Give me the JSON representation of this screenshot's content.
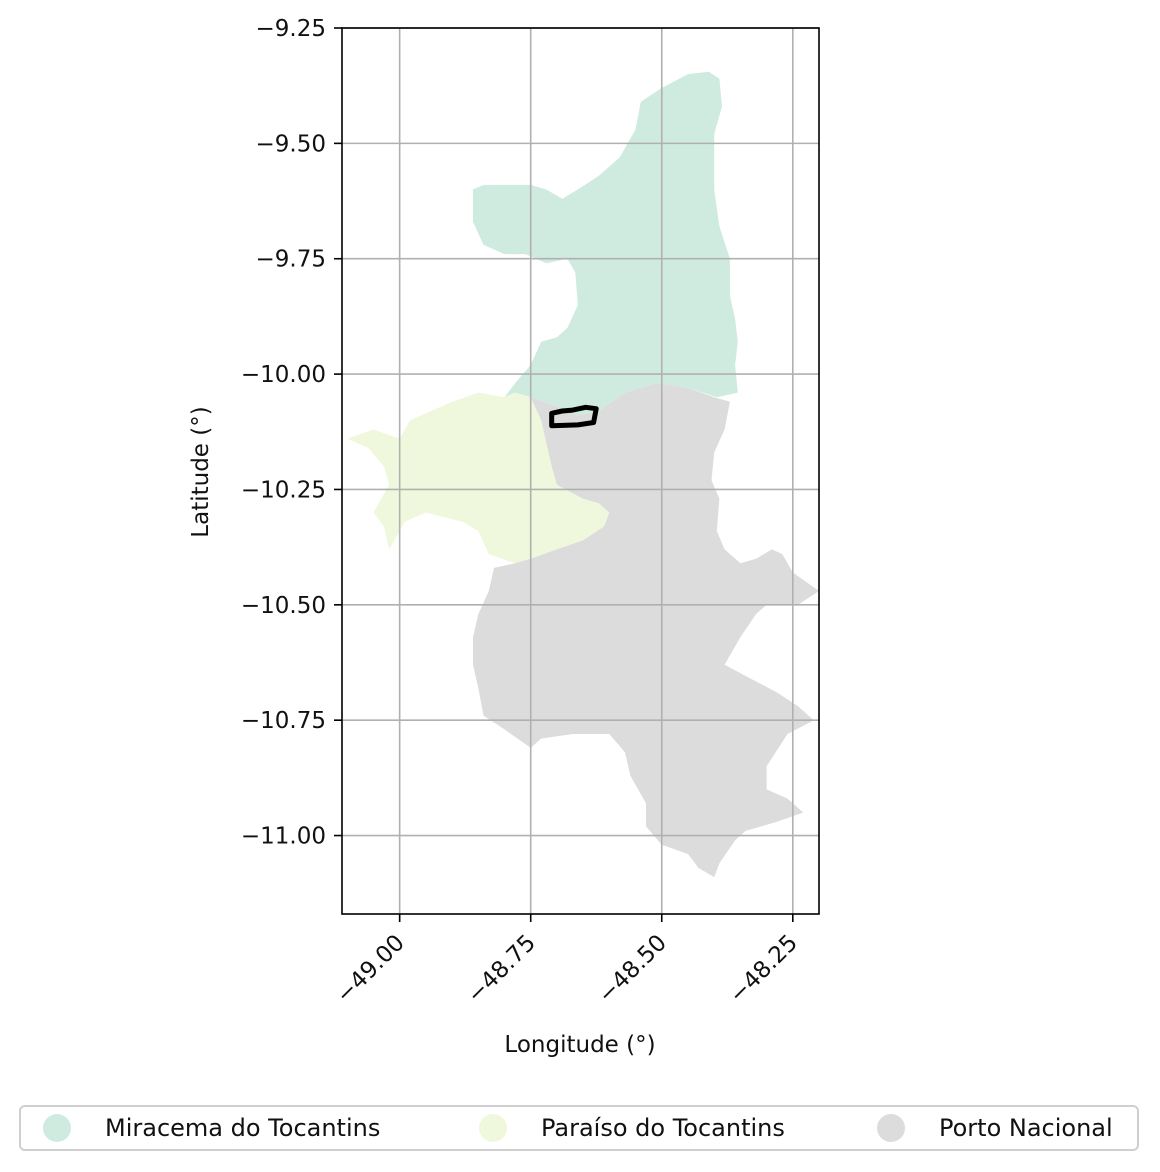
{
  "axes": {
    "xlabel": "Longitude (°)",
    "ylabel": "Latitude (°)",
    "xlim": [
      -49.11,
      -48.2
    ],
    "ylim": [
      -11.17,
      -9.25
    ],
    "xticks": [
      {
        "value": -49.0,
        "label": "−49.00"
      },
      {
        "value": -48.75,
        "label": "−48.75"
      },
      {
        "value": -48.5,
        "label": "−48.50"
      },
      {
        "value": -48.25,
        "label": "−48.25"
      }
    ],
    "yticks": [
      {
        "value": -9.25,
        "label": "−9.25"
      },
      {
        "value": -9.5,
        "label": "−9.50"
      },
      {
        "value": -9.75,
        "label": "−9.75"
      },
      {
        "value": -10.0,
        "label": "−10.00"
      },
      {
        "value": -10.25,
        "label": "−10.25"
      },
      {
        "value": -10.5,
        "label": "−10.50"
      },
      {
        "value": -10.75,
        "label": "−10.75"
      },
      {
        "value": -11.0,
        "label": "−11.00"
      }
    ],
    "grid": true
  },
  "regions": [
    {
      "name": "Miracema do Tocantins",
      "color": "#cfebdf",
      "polygon": [
        [
          -48.45,
          -9.35
        ],
        [
          -48.41,
          -9.345
        ],
        [
          -48.39,
          -9.36
        ],
        [
          -48.385,
          -9.42
        ],
        [
          -48.4,
          -9.48
        ],
        [
          -48.4,
          -9.6
        ],
        [
          -48.39,
          -9.68
        ],
        [
          -48.37,
          -9.75
        ],
        [
          -48.37,
          -9.83
        ],
        [
          -48.36,
          -9.88
        ],
        [
          -48.355,
          -9.93
        ],
        [
          -48.36,
          -9.98
        ],
        [
          -48.355,
          -10.04
        ],
        [
          -48.395,
          -10.05
        ],
        [
          -48.45,
          -10.03
        ],
        [
          -48.51,
          -10.02
        ],
        [
          -48.57,
          -10.04
        ],
        [
          -48.62,
          -10.08
        ],
        [
          -48.66,
          -10.09
        ],
        [
          -48.7,
          -10.07
        ],
        [
          -48.75,
          -10.05
        ],
        [
          -48.78,
          -10.04
        ],
        [
          -48.8,
          -10.05
        ],
        [
          -48.78,
          -10.02
        ],
        [
          -48.75,
          -9.98
        ],
        [
          -48.73,
          -9.93
        ],
        [
          -48.7,
          -9.92
        ],
        [
          -48.68,
          -9.9
        ],
        [
          -48.66,
          -9.85
        ],
        [
          -48.665,
          -9.78
        ],
        [
          -48.68,
          -9.75
        ],
        [
          -48.72,
          -9.76
        ],
        [
          -48.76,
          -9.74
        ],
        [
          -48.8,
          -9.74
        ],
        [
          -48.84,
          -9.72
        ],
        [
          -48.86,
          -9.67
        ],
        [
          -48.86,
          -9.6
        ],
        [
          -48.84,
          -9.59
        ],
        [
          -48.78,
          -9.59
        ],
        [
          -48.75,
          -9.59
        ],
        [
          -48.72,
          -9.6
        ],
        [
          -48.69,
          -9.62
        ],
        [
          -48.66,
          -9.6
        ],
        [
          -48.62,
          -9.57
        ],
        [
          -48.58,
          -9.53
        ],
        [
          -48.55,
          -9.47
        ],
        [
          -48.54,
          -9.41
        ],
        [
          -48.5,
          -9.38
        ]
      ]
    },
    {
      "name": "Paraíso do Tocantins",
      "color": "#eff8dc",
      "polygon": [
        [
          -48.8,
          -10.05
        ],
        [
          -48.78,
          -10.04
        ],
        [
          -48.75,
          -10.05
        ],
        [
          -48.73,
          -10.1
        ],
        [
          -48.71,
          -10.2
        ],
        [
          -48.7,
          -10.24
        ],
        [
          -48.65,
          -10.27
        ],
        [
          -48.62,
          -10.28
        ],
        [
          -48.6,
          -10.3
        ],
        [
          -48.61,
          -10.33
        ],
        [
          -48.65,
          -10.36
        ],
        [
          -48.7,
          -10.38
        ],
        [
          -48.75,
          -10.4
        ],
        [
          -48.78,
          -10.41
        ],
        [
          -48.83,
          -10.39
        ],
        [
          -48.85,
          -10.34
        ],
        [
          -48.88,
          -10.32
        ],
        [
          -48.95,
          -10.3
        ],
        [
          -48.99,
          -10.32
        ],
        [
          -49.02,
          -10.38
        ],
        [
          -49.03,
          -10.33
        ],
        [
          -49.05,
          -10.3
        ],
        [
          -49.02,
          -10.24
        ],
        [
          -49.03,
          -10.2
        ],
        [
          -49.06,
          -10.16
        ],
        [
          -49.1,
          -10.14
        ],
        [
          -49.05,
          -10.12
        ],
        [
          -49.0,
          -10.14
        ],
        [
          -48.98,
          -10.1
        ],
        [
          -48.94,
          -10.08
        ],
        [
          -48.9,
          -10.06
        ],
        [
          -48.85,
          -10.04
        ]
      ]
    },
    {
      "name": "Porto Nacional",
      "color": "#dcdcdc",
      "polygon": [
        [
          -48.7,
          -10.07
        ],
        [
          -48.66,
          -10.09
        ],
        [
          -48.62,
          -10.08
        ],
        [
          -48.57,
          -10.04
        ],
        [
          -48.51,
          -10.02
        ],
        [
          -48.45,
          -10.03
        ],
        [
          -48.4,
          -10.05
        ],
        [
          -48.37,
          -10.06
        ],
        [
          -48.38,
          -10.12
        ],
        [
          -48.4,
          -10.17
        ],
        [
          -48.405,
          -10.23
        ],
        [
          -48.39,
          -10.27
        ],
        [
          -48.395,
          -10.34
        ],
        [
          -48.38,
          -10.38
        ],
        [
          -48.35,
          -10.41
        ],
        [
          -48.32,
          -10.4
        ],
        [
          -48.29,
          -10.38
        ],
        [
          -48.27,
          -10.39
        ],
        [
          -48.25,
          -10.43
        ],
        [
          -48.2,
          -10.47
        ],
        [
          -48.24,
          -10.5
        ],
        [
          -48.3,
          -10.5
        ],
        [
          -48.32,
          -10.52
        ],
        [
          -48.35,
          -10.57
        ],
        [
          -48.38,
          -10.63
        ],
        [
          -48.33,
          -10.66
        ],
        [
          -48.28,
          -10.69
        ],
        [
          -48.24,
          -10.72
        ],
        [
          -48.21,
          -10.75
        ],
        [
          -48.26,
          -10.78
        ],
        [
          -48.3,
          -10.85
        ],
        [
          -48.3,
          -10.9
        ],
        [
          -48.26,
          -10.92
        ],
        [
          -48.23,
          -10.95
        ],
        [
          -48.28,
          -10.97
        ],
        [
          -48.34,
          -10.99
        ],
        [
          -48.36,
          -11.01
        ],
        [
          -48.39,
          -11.06
        ],
        [
          -48.4,
          -11.09
        ],
        [
          -48.43,
          -11.07
        ],
        [
          -48.45,
          -11.04
        ],
        [
          -48.5,
          -11.02
        ],
        [
          -48.53,
          -10.98
        ],
        [
          -48.53,
          -10.93
        ],
        [
          -48.56,
          -10.87
        ],
        [
          -48.57,
          -10.82
        ],
        [
          -48.6,
          -10.78
        ],
        [
          -48.67,
          -10.78
        ],
        [
          -48.73,
          -10.79
        ],
        [
          -48.75,
          -10.81
        ],
        [
          -48.8,
          -10.77
        ],
        [
          -48.84,
          -10.74
        ],
        [
          -48.85,
          -10.68
        ],
        [
          -48.86,
          -10.63
        ],
        [
          -48.86,
          -10.57
        ],
        [
          -48.85,
          -10.52
        ],
        [
          -48.83,
          -10.47
        ],
        [
          -48.82,
          -10.42
        ],
        [
          -48.78,
          -10.41
        ],
        [
          -48.75,
          -10.4
        ],
        [
          -48.7,
          -10.38
        ],
        [
          -48.65,
          -10.36
        ],
        [
          -48.61,
          -10.33
        ],
        [
          -48.6,
          -10.3
        ],
        [
          -48.62,
          -10.28
        ],
        [
          -48.65,
          -10.27
        ],
        [
          -48.7,
          -10.24
        ],
        [
          -48.71,
          -10.2
        ],
        [
          -48.73,
          -10.1
        ],
        [
          -48.75,
          -10.05
        ]
      ]
    }
  ],
  "highlight": {
    "stroke": "#000000",
    "polygon": [
      [
        -48.71,
        -10.085
      ],
      [
        -48.69,
        -10.08
      ],
      [
        -48.67,
        -10.078
      ],
      [
        -48.645,
        -10.072
      ],
      [
        -48.625,
        -10.075
      ],
      [
        -48.63,
        -10.105
      ],
      [
        -48.66,
        -10.11
      ],
      [
        -48.71,
        -10.112
      ]
    ]
  },
  "legend": {
    "items": [
      {
        "label": "Miracema do Tocantins",
        "color": "#cfebdf"
      },
      {
        "label": "Paraíso do Tocantins",
        "color": "#eff8dc"
      },
      {
        "label": "Porto Nacional",
        "color": "#dcdcdc"
      }
    ]
  }
}
